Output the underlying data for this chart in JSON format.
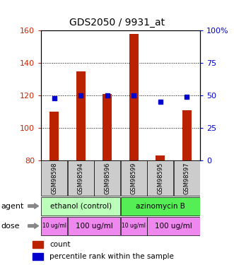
{
  "title": "GDS2050 / 9931_at",
  "samples": [
    "GSM98598",
    "GSM98594",
    "GSM98596",
    "GSM98599",
    "GSM98595",
    "GSM98597"
  ],
  "count_values": [
    110,
    135,
    121,
    158,
    83,
    111
  ],
  "percentile_values": [
    48,
    50,
    50,
    50,
    45,
    49
  ],
  "ylim_left": [
    80,
    160
  ],
  "ylim_right": [
    0,
    100
  ],
  "bar_color": "#BB2200",
  "dot_color": "#0000CC",
  "agent_groups": [
    {
      "label": "ethanol (control)",
      "start": 0,
      "end": 3,
      "color": "#BBFFBB"
    },
    {
      "label": "azinomycin B",
      "start": 3,
      "end": 6,
      "color": "#55EE55"
    }
  ],
  "dose_groups": [
    {
      "label": "10 ug/ml",
      "start": 0,
      "end": 1,
      "color": "#EE88EE",
      "small": true
    },
    {
      "label": "100 ug/ml",
      "start": 1,
      "end": 3,
      "color": "#EE88EE",
      "small": false
    },
    {
      "label": "10 ug/ml",
      "start": 3,
      "end": 4,
      "color": "#EE88EE",
      "small": true
    },
    {
      "label": "100 ug/ml",
      "start": 4,
      "end": 6,
      "color": "#EE88EE",
      "small": false
    }
  ],
  "sample_bg_color": "#CCCCCC",
  "ylabel_left_color": "#CC2200",
  "ylabel_right_color": "#0000CC",
  "left_ticks": [
    80,
    100,
    120,
    140,
    160
  ],
  "right_ticks": [
    0,
    25,
    50,
    75,
    100
  ],
  "right_tick_labels": [
    "0",
    "25",
    "50",
    "75",
    "100%"
  ]
}
